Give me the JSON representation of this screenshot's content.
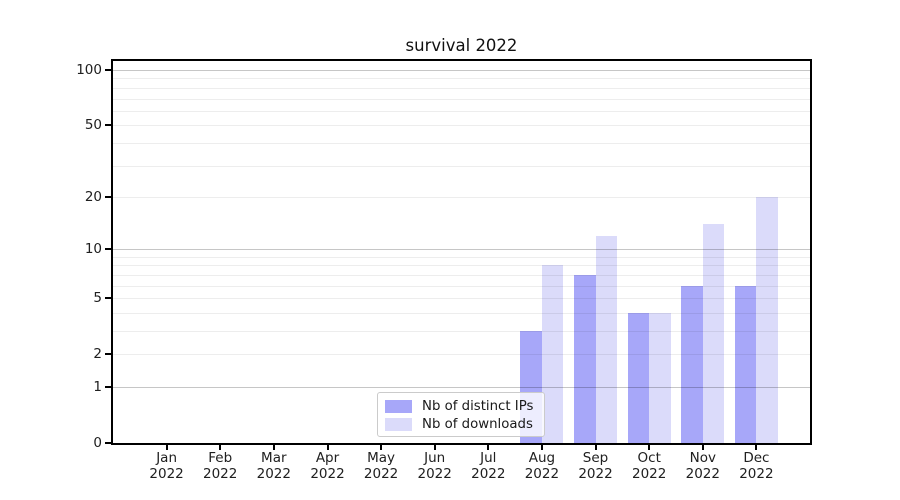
{
  "chart_data": {
    "type": "bar",
    "title": "survival 2022",
    "categories": [
      {
        "month": "Jan",
        "year": "2022"
      },
      {
        "month": "Feb",
        "year": "2022"
      },
      {
        "month": "Mar",
        "year": "2022"
      },
      {
        "month": "Apr",
        "year": "2022"
      },
      {
        "month": "May",
        "year": "2022"
      },
      {
        "month": "Jun",
        "year": "2022"
      },
      {
        "month": "Jul",
        "year": "2022"
      },
      {
        "month": "Aug",
        "year": "2022"
      },
      {
        "month": "Sep",
        "year": "2022"
      },
      {
        "month": "Oct",
        "year": "2022"
      },
      {
        "month": "Nov",
        "year": "2022"
      },
      {
        "month": "Dec",
        "year": "2022"
      }
    ],
    "series": [
      {
        "name": "Nb of distinct IPs",
        "color": "#a7a7f9",
        "values": [
          0,
          0,
          0,
          0,
          0,
          0,
          0,
          3,
          7,
          4,
          6,
          6
        ]
      },
      {
        "name": "Nb of downloads",
        "color": "#dbdbfa",
        "values": [
          0,
          0,
          0,
          0,
          0,
          0,
          0,
          8,
          12,
          4,
          14,
          20
        ]
      }
    ],
    "xlabel": "",
    "ylabel": "",
    "yscale": "log1p",
    "ylim": [
      0,
      112
    ],
    "yticks": [
      0,
      1,
      2,
      5,
      10,
      20,
      50,
      100
    ],
    "major_gridlines": [
      1,
      10,
      100
    ],
    "minor_gridlines": [
      2,
      3,
      4,
      5,
      6,
      7,
      8,
      9,
      20,
      30,
      40,
      50,
      60,
      70,
      80,
      90
    ],
    "grid": true,
    "legend_position": "lower center"
  },
  "colors": {
    "bar_distinct_ips": "#a7a7f9",
    "bar_downloads": "#dbdbfa",
    "major_grid": "#c6c6c6",
    "minor_grid": "#ededed",
    "axis_spine": "#000000",
    "background": "#ffffff"
  }
}
